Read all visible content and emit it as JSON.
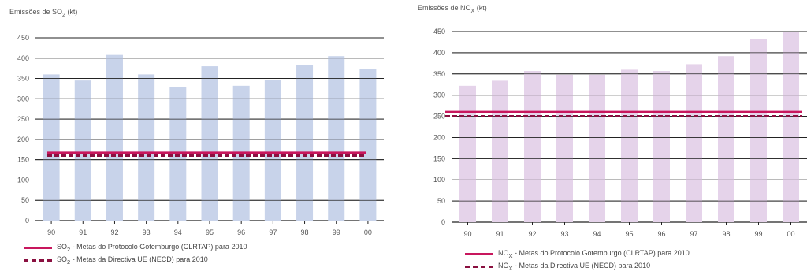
{
  "chart_data": [
    {
      "type": "bar",
      "ylabel": "Emissões de SO2 (kt)",
      "categories": [
        "90",
        "91",
        "92",
        "93",
        "94",
        "95",
        "96",
        "97",
        "98",
        "99",
        "00"
      ],
      "values": [
        360,
        345,
        408,
        360,
        328,
        380,
        332,
        346,
        383,
        405,
        373
      ],
      "ylim": [
        0,
        450
      ],
      "yticks": [
        0,
        50,
        100,
        150,
        200,
        250,
        300,
        350,
        400,
        450
      ],
      "grid": true,
      "bar_color": "#c8d3ea",
      "reference_lines": [
        {
          "name": "SO2 - Metas do Protocolo Gotemburgo (CLRTAP) para 2010",
          "value": 167,
          "style": "solid",
          "color": "#c8175d"
        },
        {
          "name": "SO2 - Metas da Directiva UE (NECD) para 2010",
          "value": 160,
          "style": "dashed",
          "color": "#8a1040"
        }
      ]
    },
    {
      "type": "bar",
      "ylabel": "Emissões de NOX (kt)",
      "categories": [
        "90",
        "91",
        "92",
        "93",
        "94",
        "95",
        "96",
        "97",
        "98",
        "99",
        "00"
      ],
      "values": [
        322,
        334,
        357,
        348,
        348,
        360,
        357,
        373,
        392,
        433,
        449
      ],
      "ylim": [
        0,
        450
      ],
      "yticks": [
        0,
        50,
        100,
        150,
        200,
        250,
        300,
        350,
        400,
        450
      ],
      "grid": true,
      "bar_color": "#e5d3ea",
      "reference_lines": [
        {
          "name": "NOX - Metas do Protocolo Gotemburgo (CLRTAP) para 2010",
          "value": 260,
          "style": "solid",
          "color": "#c8175d"
        },
        {
          "name": "NOX - Metas da Directiva UE (NECD) para 2010",
          "value": 250,
          "style": "dashed",
          "color": "#8a1040"
        }
      ]
    }
  ],
  "labels": {
    "so2": {
      "axis_prefix": "Emissões de SO",
      "axis_sub": "2",
      "axis_suffix": " (kt)",
      "legend_solid_prefix": "SO",
      "legend_solid_sub": "2",
      "legend_solid_text": " - Metas do Protocolo Gotemburgo (CLRTAP) para 2010",
      "legend_dashed_prefix": "SO",
      "legend_dashed_sub": "2",
      "legend_dashed_text": " - Metas da Directiva UE (NECD) para 2010"
    },
    "nox": {
      "axis_prefix": "Emissões de NO",
      "axis_sub": "X",
      "axis_suffix": " (kt)",
      "legend_solid_prefix": "NO",
      "legend_solid_sub": "X",
      "legend_solid_text": " - Metas do Protocolo Gotemburgo (CLRTAP) para 2010",
      "legend_dashed_prefix": "NO",
      "legend_dashed_sub": "X",
      "legend_dashed_text": " - Metas da Directiva UE (NECD) para 2010"
    }
  }
}
